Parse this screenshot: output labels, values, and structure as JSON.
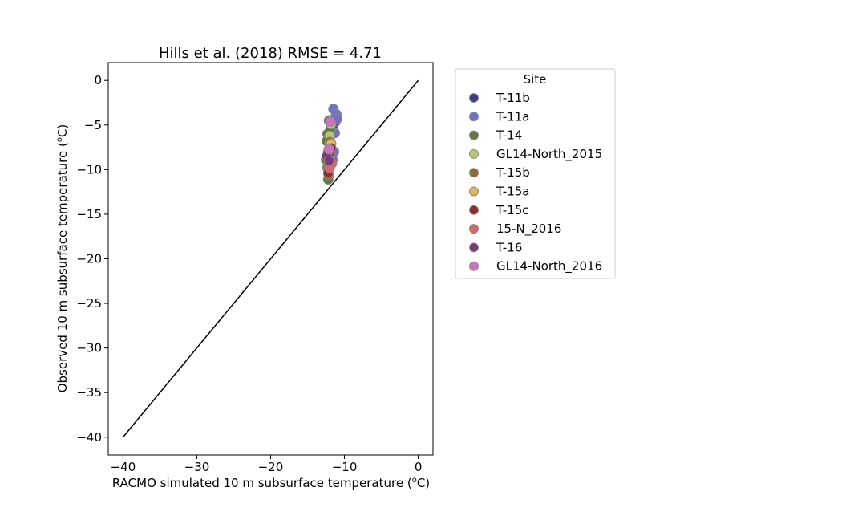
{
  "chart_data": {
    "type": "scatter",
    "title": "Hills et al. (2018) RMSE = 4.71",
    "xlabel_main": "RACMO simulated 10 m subsurface temperature (",
    "ylabel_main": "Observed 10 m subsurface temperature (",
    "label_unit_sup": "o",
    "label_unit_end": "C)",
    "xlim": [
      -42,
      2
    ],
    "ylim": [
      -42,
      2
    ],
    "xticks": [
      -40,
      -30,
      -20,
      -10,
      0
    ],
    "yticks": [
      0,
      -5,
      -10,
      -15,
      -20,
      -25,
      -30,
      -35,
      -40
    ],
    "tick_labels_x": [
      "−40",
      "−30",
      "−20",
      "−10",
      "0"
    ],
    "tick_labels_y": [
      "0",
      "−5",
      "−10",
      "−15",
      "−20",
      "−25",
      "−30",
      "−35",
      "−40"
    ],
    "one_to_one_line": {
      "x": [
        -40,
        0
      ],
      "y": [
        -40,
        0
      ]
    },
    "legend": {
      "title": "Site",
      "placement": "outside-right"
    },
    "series": [
      {
        "name": "T-11b",
        "color": "#3b3b82",
        "points": [
          [
            -11.3,
            -4.2
          ],
          [
            -11.1,
            -3.8
          ],
          [
            -11.5,
            -5.0
          ],
          [
            -11.2,
            -4.6
          ]
        ]
      },
      {
        "name": "T-11a",
        "color": "#7070c8",
        "points": [
          [
            -11.5,
            -3.2
          ],
          [
            -11.1,
            -3.8
          ],
          [
            -11.0,
            -4.3
          ],
          [
            -11.3,
            -5.9
          ],
          [
            -11.4,
            -8.0
          ],
          [
            -11.6,
            -8.9
          ],
          [
            -12.0,
            -4.5
          ]
        ]
      },
      {
        "name": "T-14",
        "color": "#5f7a3c",
        "points": [
          [
            -12.1,
            -4.5
          ],
          [
            -12.3,
            -6.0
          ],
          [
            -12.0,
            -6.6
          ],
          [
            -12.4,
            -6.8
          ],
          [
            -12.5,
            -8.9
          ],
          [
            -12.3,
            -9.8
          ],
          [
            -12.2,
            -11.1
          ],
          [
            -11.9,
            -5.5
          ]
        ]
      },
      {
        "name": "GL14-North_2015",
        "color": "#b5c86e",
        "points": [
          [
            -11.8,
            -4.9
          ],
          [
            -12.0,
            -6.2
          ]
        ]
      },
      {
        "name": "T-15b",
        "color": "#8b6d2e",
        "points": [
          [
            -12.1,
            -10.6
          ],
          [
            -12.2,
            -10.0
          ],
          [
            -11.9,
            -7.4
          ],
          [
            -12.0,
            -6.9
          ]
        ]
      },
      {
        "name": "T-15a",
        "color": "#e2b555",
        "points": [
          [
            -11.8,
            -7.1
          ],
          [
            -12.0,
            -8.6
          ]
        ]
      },
      {
        "name": "T-15c",
        "color": "#8b2d2d",
        "points": [
          [
            -11.8,
            -7.6
          ],
          [
            -12.0,
            -8.2
          ],
          [
            -12.2,
            -10.4
          ],
          [
            -11.9,
            -9.1
          ]
        ]
      },
      {
        "name": "15-N_2016",
        "color": "#dc6464",
        "points": [
          [
            -11.7,
            -9.3
          ],
          [
            -12.0,
            -9.8
          ]
        ]
      },
      {
        "name": "T-16",
        "color": "#7a3a78",
        "points": [
          [
            -12.2,
            -8.0
          ],
          [
            -12.4,
            -8.5
          ],
          [
            -12.1,
            -9.0
          ]
        ]
      },
      {
        "name": "GL14-North_2016",
        "color": "#d070c0",
        "points": [
          [
            -11.9,
            -4.6
          ],
          [
            -12.1,
            -7.7
          ]
        ]
      }
    ]
  }
}
